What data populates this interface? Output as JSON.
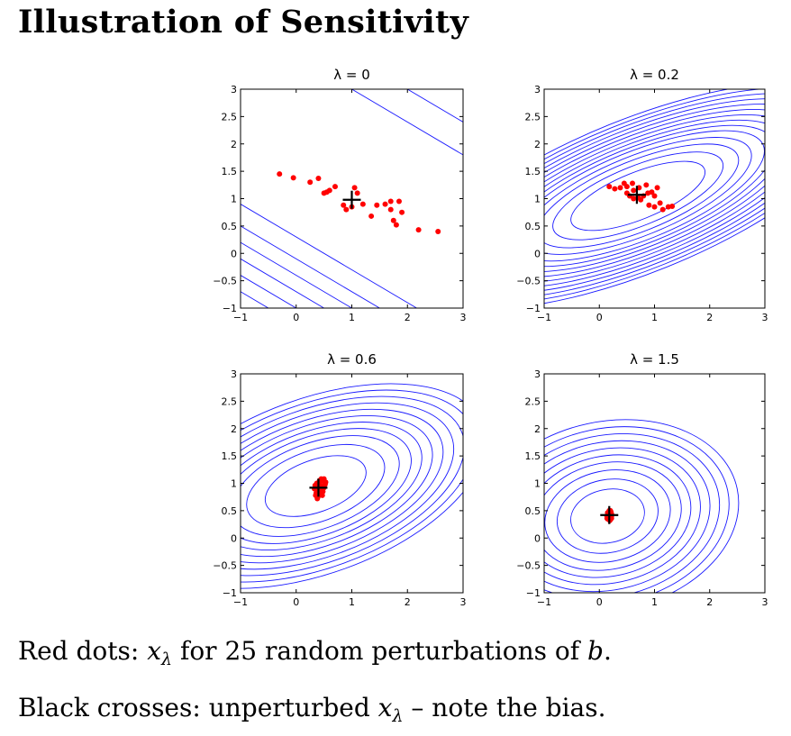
{
  "title": "Illustration of Sensitivity",
  "captions": {
    "line1_prefix": "Red dots: ",
    "line1_var": "x",
    "line1_sub": "λ",
    "line1_suffix": " for 25 random perturbations of ",
    "line1_b": "b",
    "line1_end": ".",
    "line2_prefix": "Black crosses: unperturbed ",
    "line2_var": "x",
    "line2_sub": "λ",
    "line2_suffix": " – note the bias."
  },
  "colors": {
    "contour": "#1a1aff",
    "dots": "#ff0000",
    "cross": "#000000",
    "axes": "#000000"
  },
  "chart_data": [
    {
      "type": "scatter",
      "title": "λ = 0",
      "xlim": [
        -1,
        3
      ],
      "ylim": [
        -1,
        3
      ],
      "xticks": [
        -1,
        0,
        1,
        2,
        3
      ],
      "yticks": [
        -1,
        -0.5,
        0,
        0.5,
        1,
        1.5,
        2,
        2.5,
        3
      ],
      "xtick_labels": [
        "−1",
        "0",
        "1",
        "2",
        "3"
      ],
      "ytick_labels": [
        "−1",
        "−0.5",
        "0",
        "0.5",
        "1",
        "1.5",
        "2",
        "2.5",
        "3"
      ],
      "contours": "straight parallel lines",
      "cross": [
        1.0,
        0.98
      ],
      "points": [
        [
          -0.3,
          1.45
        ],
        [
          -0.05,
          1.38
        ],
        [
          0.25,
          1.3
        ],
        [
          0.4,
          1.37
        ],
        [
          0.55,
          1.12
        ],
        [
          0.6,
          1.15
        ],
        [
          0.7,
          1.22
        ],
        [
          0.85,
          0.88
        ],
        [
          0.9,
          0.8
        ],
        [
          1.05,
          1.2
        ],
        [
          1.1,
          1.1
        ],
        [
          1.2,
          0.9
        ],
        [
          1.35,
          0.68
        ],
        [
          1.45,
          0.88
        ],
        [
          1.7,
          0.95
        ],
        [
          1.7,
          0.8
        ],
        [
          1.75,
          0.6
        ],
        [
          1.8,
          0.52
        ],
        [
          1.85,
          0.95
        ],
        [
          1.9,
          0.75
        ],
        [
          2.2,
          0.43
        ],
        [
          2.55,
          0.4
        ],
        [
          0.5,
          1.1
        ],
        [
          1.6,
          0.9
        ],
        [
          1.0,
          0.85
        ]
      ]
    },
    {
      "type": "scatter",
      "title": "λ = 0.2",
      "xlim": [
        -1,
        3
      ],
      "ylim": [
        -1,
        3
      ],
      "xticks": [
        -1,
        0,
        1,
        2,
        3
      ],
      "yticks": [
        -1,
        -0.5,
        0,
        0.5,
        1,
        1.5,
        2,
        2.5,
        3
      ],
      "xtick_labels": [
        "−1",
        "0",
        "1",
        "2",
        "3"
      ],
      "ytick_labels": [
        "−1",
        "−0.5",
        "0",
        "0.5",
        "1",
        "1.5",
        "2",
        "2.5",
        "3"
      ],
      "contours": "elongated ellipses",
      "cross": [
        0.68,
        1.07
      ],
      "points": [
        [
          0.18,
          1.22
        ],
        [
          0.28,
          1.18
        ],
        [
          0.38,
          1.2
        ],
        [
          0.45,
          1.28
        ],
        [
          0.5,
          1.1
        ],
        [
          0.55,
          1.05
        ],
        [
          0.6,
          1.28
        ],
        [
          0.62,
          1.15
        ],
        [
          0.7,
          1.02
        ],
        [
          0.75,
          0.98
        ],
        [
          0.8,
          1.05
        ],
        [
          0.85,
          1.25
        ],
        [
          0.9,
          0.88
        ],
        [
          0.95,
          1.12
        ],
        [
          1.0,
          0.85
        ],
        [
          1.05,
          1.2
        ],
        [
          1.1,
          0.92
        ],
        [
          1.15,
          0.8
        ],
        [
          1.25,
          0.85
        ],
        [
          1.32,
          0.86
        ],
        [
          1.0,
          1.05
        ],
        [
          0.72,
          1.2
        ],
        [
          0.5,
          1.22
        ],
        [
          0.88,
          1.1
        ],
        [
          0.62,
          1.0
        ]
      ]
    },
    {
      "type": "scatter",
      "title": "λ = 0.6",
      "xlim": [
        -1,
        3
      ],
      "ylim": [
        -1,
        3
      ],
      "xticks": [
        -1,
        0,
        1,
        2,
        3
      ],
      "yticks": [
        -1,
        -0.5,
        0,
        0.5,
        1,
        1.5,
        2,
        2.5,
        3
      ],
      "xtick_labels": [
        "−1",
        "0",
        "1",
        "2",
        "3"
      ],
      "ytick_labels": [
        "−1",
        "−0.5",
        "0",
        "0.5",
        "1",
        "1.5",
        "2",
        "2.5",
        "3"
      ],
      "contours": "elongated ellipses",
      "cross": [
        0.4,
        0.92
      ],
      "points": [
        [
          0.35,
          0.78
        ],
        [
          0.38,
          0.72
        ],
        [
          0.4,
          0.85
        ],
        [
          0.42,
          1.0
        ],
        [
          0.45,
          0.95
        ],
        [
          0.48,
          1.05
        ],
        [
          0.5,
          1.08
        ],
        [
          0.52,
          0.98
        ],
        [
          0.38,
          0.88
        ],
        [
          0.33,
          0.9
        ],
        [
          0.44,
          0.8
        ],
        [
          0.46,
          0.9
        ],
        [
          0.4,
          0.97
        ],
        [
          0.5,
          0.92
        ],
        [
          0.36,
          0.82
        ],
        [
          0.42,
          1.05
        ],
        [
          0.48,
          0.85
        ],
        [
          0.39,
          0.75
        ],
        [
          0.53,
          1.02
        ],
        [
          0.34,
          0.96
        ],
        [
          0.45,
          1.08
        ],
        [
          0.41,
          0.88
        ],
        [
          0.47,
          0.78
        ],
        [
          0.37,
          1.0
        ],
        [
          0.5,
          0.96
        ]
      ]
    },
    {
      "type": "scatter",
      "title": "λ = 1.5",
      "xlim": [
        -1,
        3
      ],
      "ylim": [
        -1,
        3
      ],
      "xticks": [
        -1,
        0,
        1,
        2,
        3
      ],
      "yticks": [
        -1,
        -0.5,
        0,
        0.5,
        1,
        1.5,
        2,
        2.5,
        3
      ],
      "xtick_labels": [
        "−1",
        "0",
        "1",
        "2",
        "3"
      ],
      "ytick_labels": [
        "−1",
        "−0.5",
        "0",
        "0.5",
        "1",
        "1.5",
        "2",
        "2.5",
        "3"
      ],
      "contours": "ellipses",
      "cross": [
        0.18,
        0.42
      ],
      "points": [
        [
          0.15,
          0.35
        ],
        [
          0.16,
          0.45
        ],
        [
          0.17,
          0.38
        ],
        [
          0.18,
          0.5
        ],
        [
          0.19,
          0.32
        ],
        [
          0.2,
          0.42
        ],
        [
          0.21,
          0.48
        ],
        [
          0.22,
          0.4
        ],
        [
          0.16,
          0.42
        ],
        [
          0.14,
          0.4
        ],
        [
          0.18,
          0.36
        ],
        [
          0.2,
          0.46
        ],
        [
          0.17,
          0.44
        ],
        [
          0.22,
          0.36
        ],
        [
          0.19,
          0.5
        ],
        [
          0.15,
          0.46
        ],
        [
          0.21,
          0.38
        ],
        [
          0.18,
          0.42
        ],
        [
          0.16,
          0.38
        ],
        [
          0.2,
          0.34
        ],
        [
          0.17,
          0.48
        ],
        [
          0.22,
          0.44
        ],
        [
          0.14,
          0.36
        ],
        [
          0.19,
          0.4
        ],
        [
          0.2,
          0.5
        ]
      ]
    }
  ]
}
